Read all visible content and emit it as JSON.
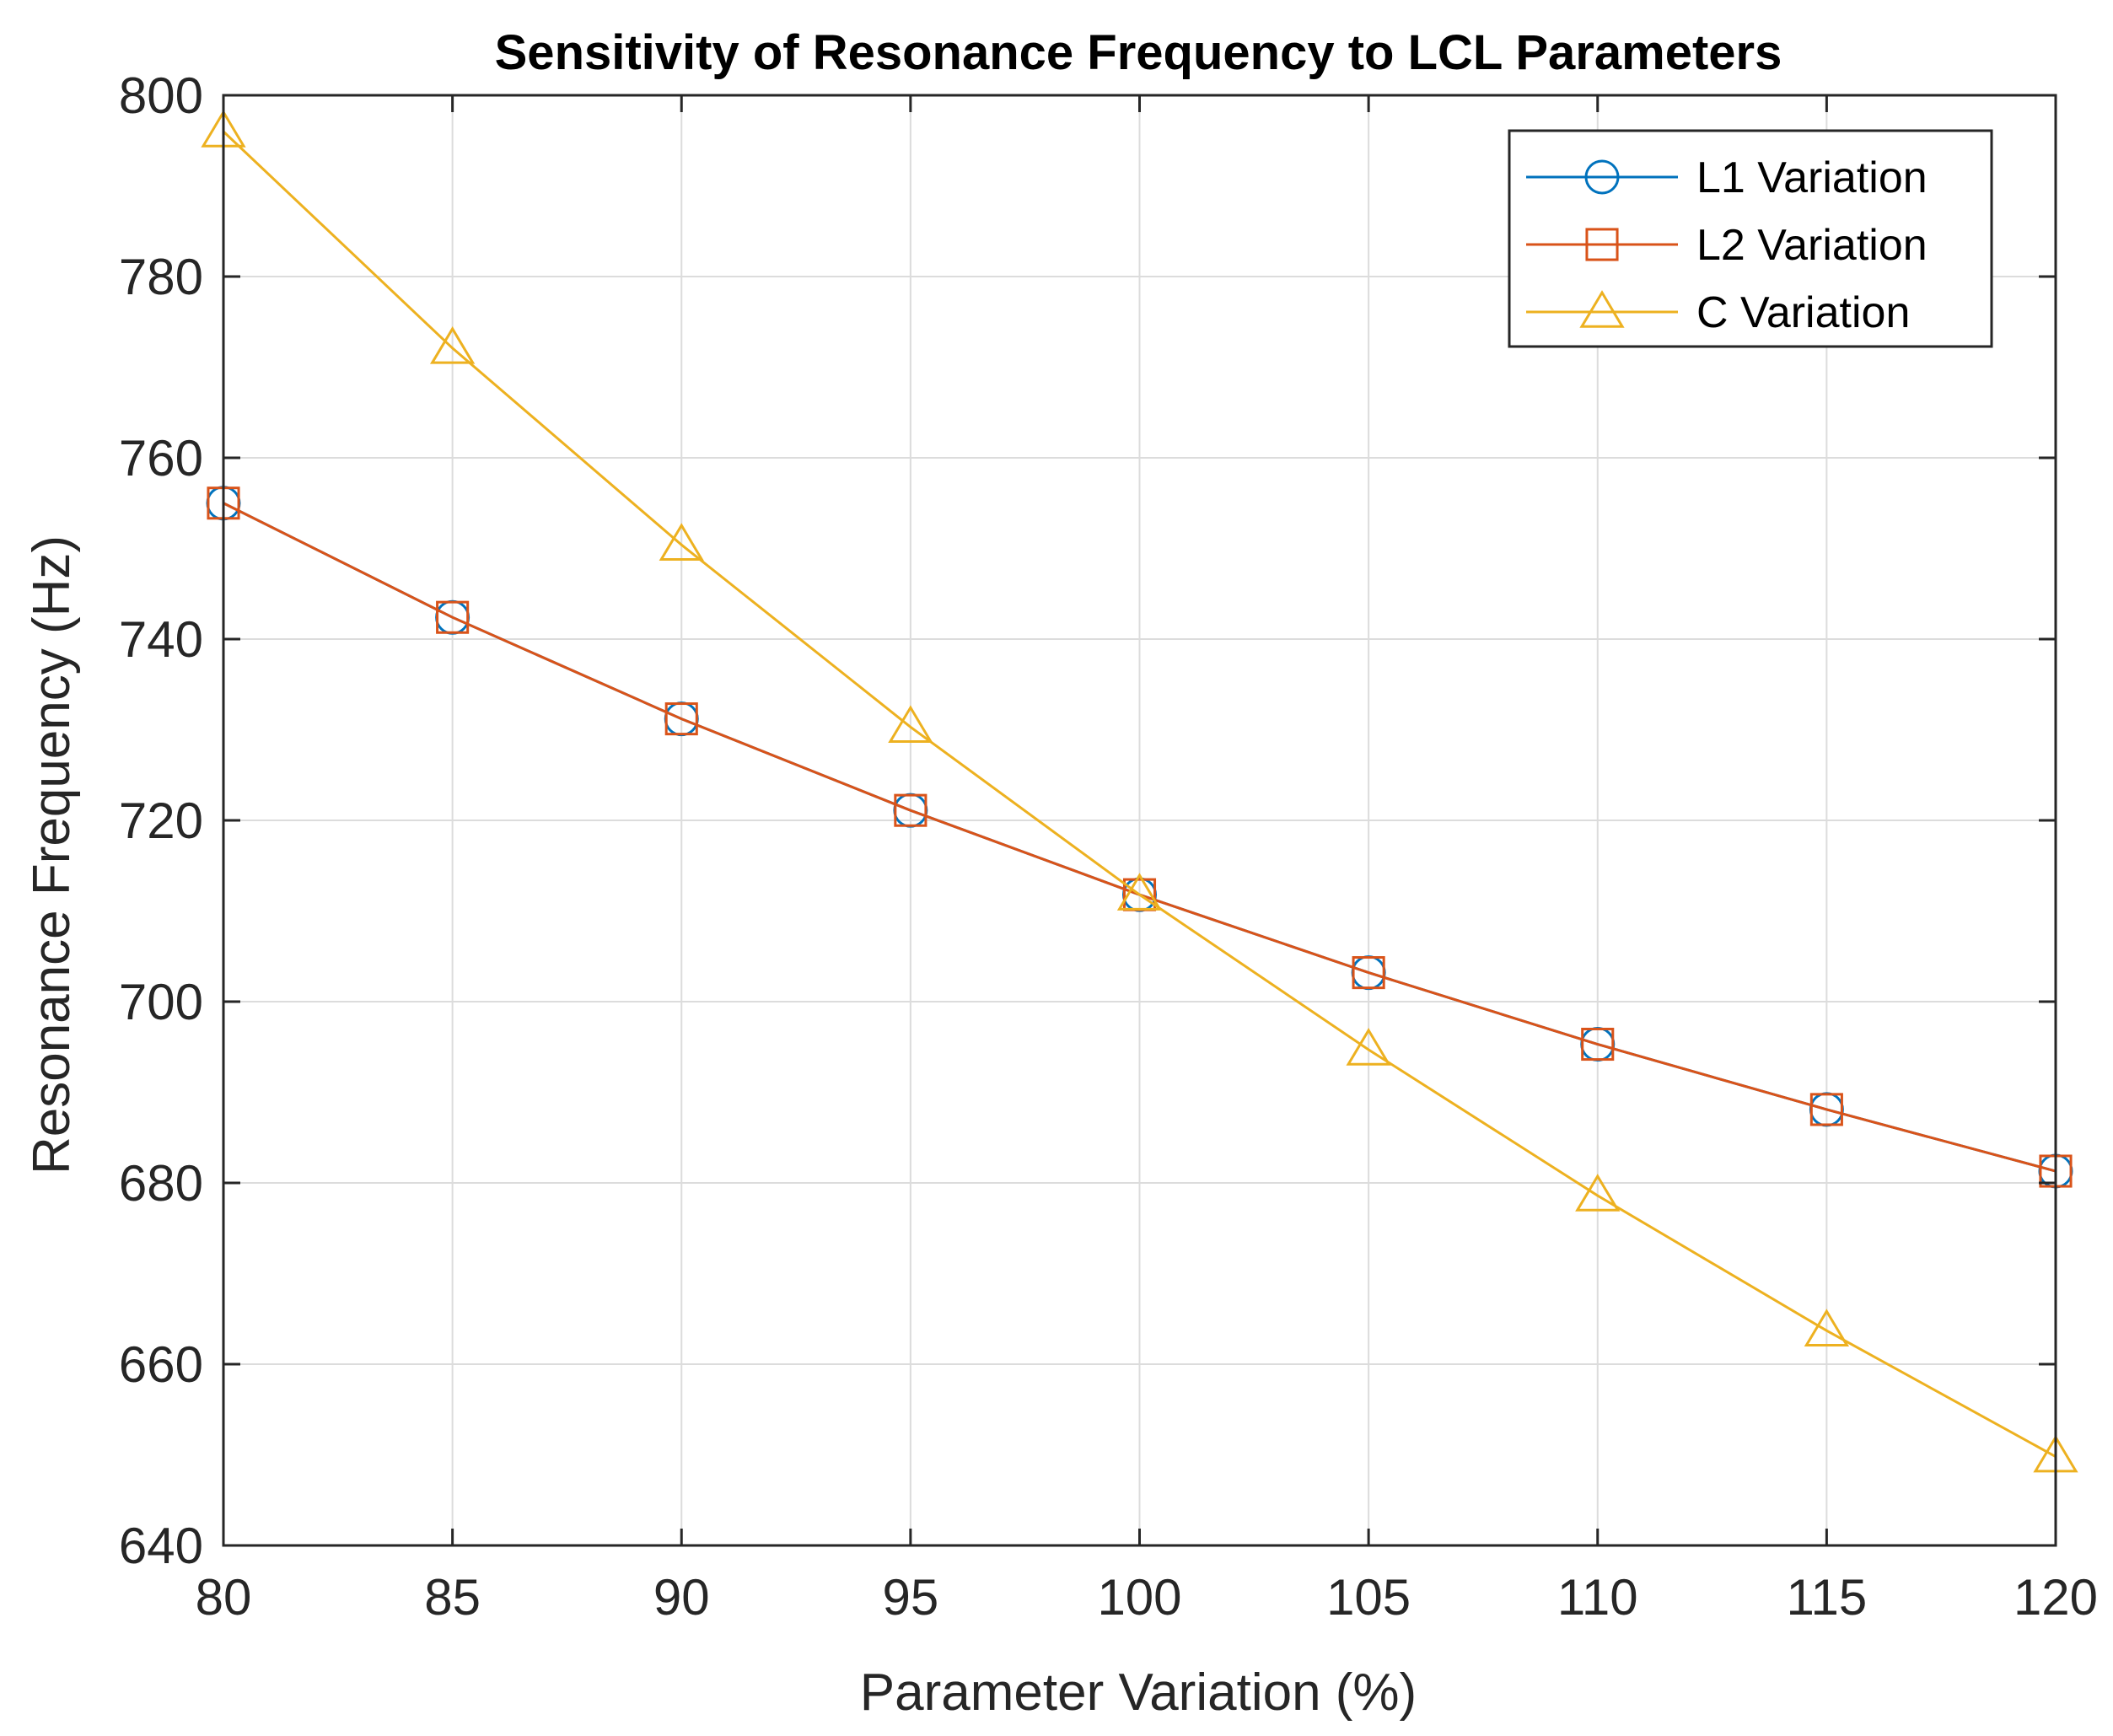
{
  "chart_data": {
    "type": "line",
    "title": "Sensitivity of Resonance Frequency to LCL Parameters",
    "xlabel": "Parameter Variation (%)",
    "ylabel": "Resonance Frequency (Hz)",
    "xlim": [
      80,
      120
    ],
    "ylim": [
      640,
      800
    ],
    "xticks": [
      80,
      85,
      90,
      95,
      100,
      105,
      110,
      115,
      120
    ],
    "yticks": [
      640,
      660,
      680,
      700,
      720,
      740,
      760,
      780,
      800
    ],
    "grid": true,
    "legend_position": "top-right",
    "x": [
      80,
      85,
      90,
      95,
      100,
      105,
      110,
      115,
      120
    ],
    "series": [
      {
        "name": "L1 Variation",
        "marker": "circle",
        "color": "#0072BD",
        "values": [
          755.0,
          742.4,
          731.2,
          721.1,
          711.8,
          703.2,
          695.3,
          688.1,
          681.3
        ]
      },
      {
        "name": "L2 Variation",
        "marker": "square",
        "color": "#D95319",
        "values": [
          755.0,
          742.4,
          731.2,
          721.1,
          711.8,
          703.2,
          695.3,
          688.1,
          681.3
        ]
      },
      {
        "name": "C Variation",
        "marker": "triangle",
        "color": "#EDB120",
        "values": [
          796.0,
          772.1,
          750.4,
          730.3,
          711.8,
          694.7,
          678.6,
          663.7,
          649.8
        ]
      }
    ]
  }
}
